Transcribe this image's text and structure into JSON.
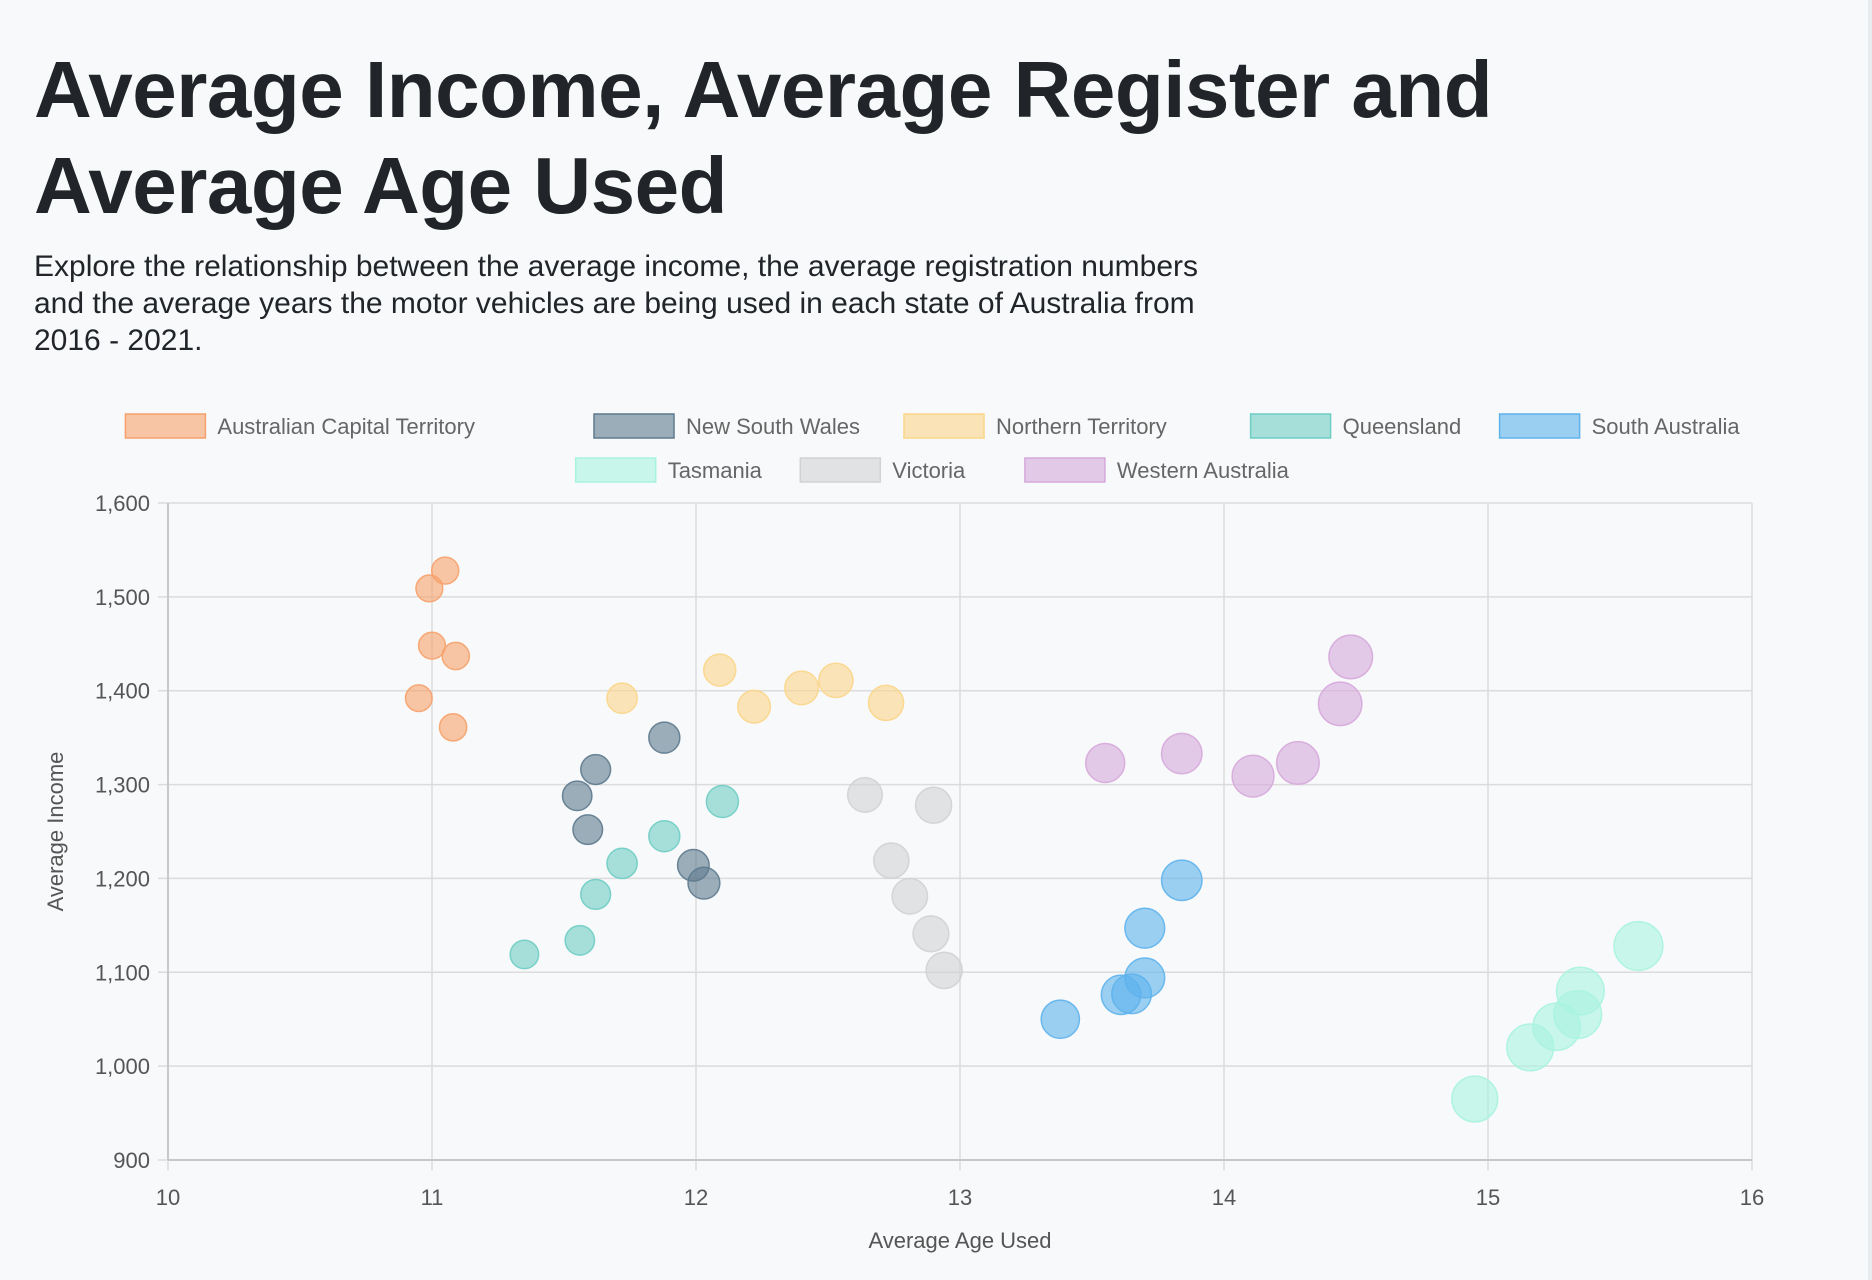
{
  "title": "Average Income, Average Register and Average Age Used",
  "subtitle": "Explore the relationship between the average income, the average registration numbers and the average years the motor vehicles are being used in each state of Australia from 2016 - 2021.",
  "chart_data": {
    "type": "scatter",
    "xlabel": "Average Age Used",
    "ylabel": "Average Income",
    "xlim": [
      10,
      16
    ],
    "ylim": [
      900,
      1600
    ],
    "x_ticks": [
      10,
      11,
      12,
      13,
      14,
      15,
      16
    ],
    "y_ticks": [
      900,
      1000,
      1100,
      1200,
      1300,
      1400,
      1500,
      1600
    ],
    "y_tick_labels": [
      "900",
      "1,000",
      "1,100",
      "1,200",
      "1,300",
      "1,400",
      "1,500",
      "1,600"
    ],
    "grid": true,
    "legend_position": "top",
    "series": [
      {
        "name": "Australian Capital Territory",
        "color": "#f6a16b",
        "points": [
          {
            "x": 11.05,
            "y": 1528
          },
          {
            "x": 10.99,
            "y": 1509
          },
          {
            "x": 11.0,
            "y": 1448
          },
          {
            "x": 11.09,
            "y": 1437
          },
          {
            "x": 10.95,
            "y": 1392
          },
          {
            "x": 11.08,
            "y": 1361
          }
        ]
      },
      {
        "name": "New South Wales",
        "color": "#5e7a8e",
        "points": [
          {
            "x": 11.88,
            "y": 1350
          },
          {
            "x": 11.62,
            "y": 1316
          },
          {
            "x": 11.55,
            "y": 1288
          },
          {
            "x": 11.59,
            "y": 1252
          },
          {
            "x": 11.99,
            "y": 1214
          },
          {
            "x": 12.03,
            "y": 1195
          }
        ]
      },
      {
        "name": "Northern Territory",
        "color": "#fbd58a",
        "points": [
          {
            "x": 11.72,
            "y": 1392
          },
          {
            "x": 12.09,
            "y": 1422
          },
          {
            "x": 12.22,
            "y": 1383
          },
          {
            "x": 12.4,
            "y": 1403
          },
          {
            "x": 12.53,
            "y": 1411
          },
          {
            "x": 12.72,
            "y": 1387
          }
        ]
      },
      {
        "name": "Queensland",
        "color": "#6fcdc4",
        "points": [
          {
            "x": 11.35,
            "y": 1119
          },
          {
            "x": 11.56,
            "y": 1134
          },
          {
            "x": 11.62,
            "y": 1183
          },
          {
            "x": 11.72,
            "y": 1216
          },
          {
            "x": 11.88,
            "y": 1245
          },
          {
            "x": 12.1,
            "y": 1282
          }
        ]
      },
      {
        "name": "South Australia",
        "color": "#5eb2ec",
        "points": [
          {
            "x": 13.38,
            "y": 1050
          },
          {
            "x": 13.61,
            "y": 1076
          },
          {
            "x": 13.65,
            "y": 1077
          },
          {
            "x": 13.7,
            "y": 1094
          },
          {
            "x": 13.7,
            "y": 1147
          },
          {
            "x": 13.84,
            "y": 1198
          }
        ]
      },
      {
        "name": "Tasmania",
        "color": "#a8f3df",
        "points": [
          {
            "x": 14.95,
            "y": 965
          },
          {
            "x": 15.16,
            "y": 1020
          },
          {
            "x": 15.26,
            "y": 1042
          },
          {
            "x": 15.34,
            "y": 1055
          },
          {
            "x": 15.35,
            "y": 1080
          },
          {
            "x": 15.57,
            "y": 1128
          }
        ]
      },
      {
        "name": "Victoria",
        "color": "#d0d2d4",
        "points": [
          {
            "x": 12.64,
            "y": 1289
          },
          {
            "x": 12.9,
            "y": 1278
          },
          {
            "x": 12.74,
            "y": 1219
          },
          {
            "x": 12.81,
            "y": 1181
          },
          {
            "x": 12.89,
            "y": 1141
          },
          {
            "x": 12.94,
            "y": 1102
          }
        ]
      },
      {
        "name": "Western Australia",
        "color": "#d6a8dc",
        "points": [
          {
            "x": 13.55,
            "y": 1323
          },
          {
            "x": 13.84,
            "y": 1333
          },
          {
            "x": 14.11,
            "y": 1309
          },
          {
            "x": 14.28,
            "y": 1323
          },
          {
            "x": 14.44,
            "y": 1386
          },
          {
            "x": 14.48,
            "y": 1436
          }
        ]
      }
    ]
  }
}
